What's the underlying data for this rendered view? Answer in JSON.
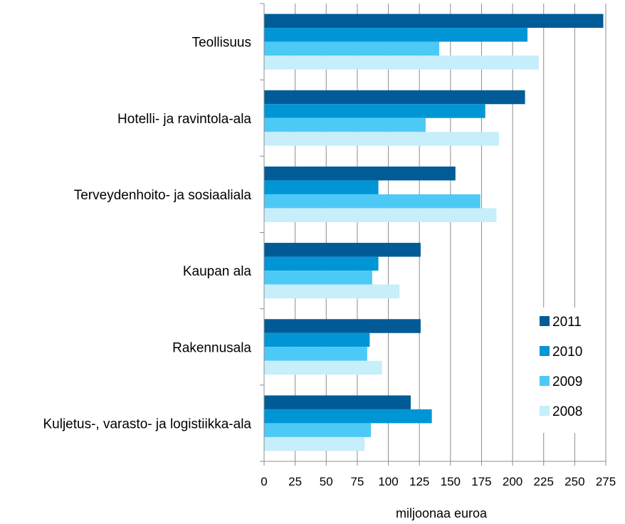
{
  "chart_data": {
    "type": "bar",
    "orientation": "horizontal",
    "title": "",
    "xlabel": "miljoonaa euroa",
    "ylabel": "",
    "xlim": [
      0,
      275
    ],
    "xticks": [
      0,
      25,
      50,
      75,
      100,
      125,
      150,
      175,
      200,
      225,
      250,
      275
    ],
    "grid": true,
    "legend_position": "bottom-right",
    "categories": [
      "Teollisuus",
      "Hotelli- ja ravintola-ala",
      "Terveydenhoito- ja sosiaaliala",
      "Kaupan ala",
      "Rakennusala",
      "Kuljetus-, varasto- ja logistiikka-ala"
    ],
    "series": [
      {
        "name": "2011",
        "color": "#005B96",
        "values": [
          273,
          210,
          154,
          126,
          126,
          118
        ]
      },
      {
        "name": "2010",
        "color": "#0096D6",
        "values": [
          212,
          178,
          92,
          92,
          85,
          135
        ]
      },
      {
        "name": "2009",
        "color": "#4DC9F6",
        "values": [
          141,
          130,
          174,
          87,
          83,
          86
        ]
      },
      {
        "name": "2008",
        "color": "#C6EEFB",
        "values": [
          221,
          189,
          187,
          109,
          95,
          81
        ]
      }
    ]
  }
}
